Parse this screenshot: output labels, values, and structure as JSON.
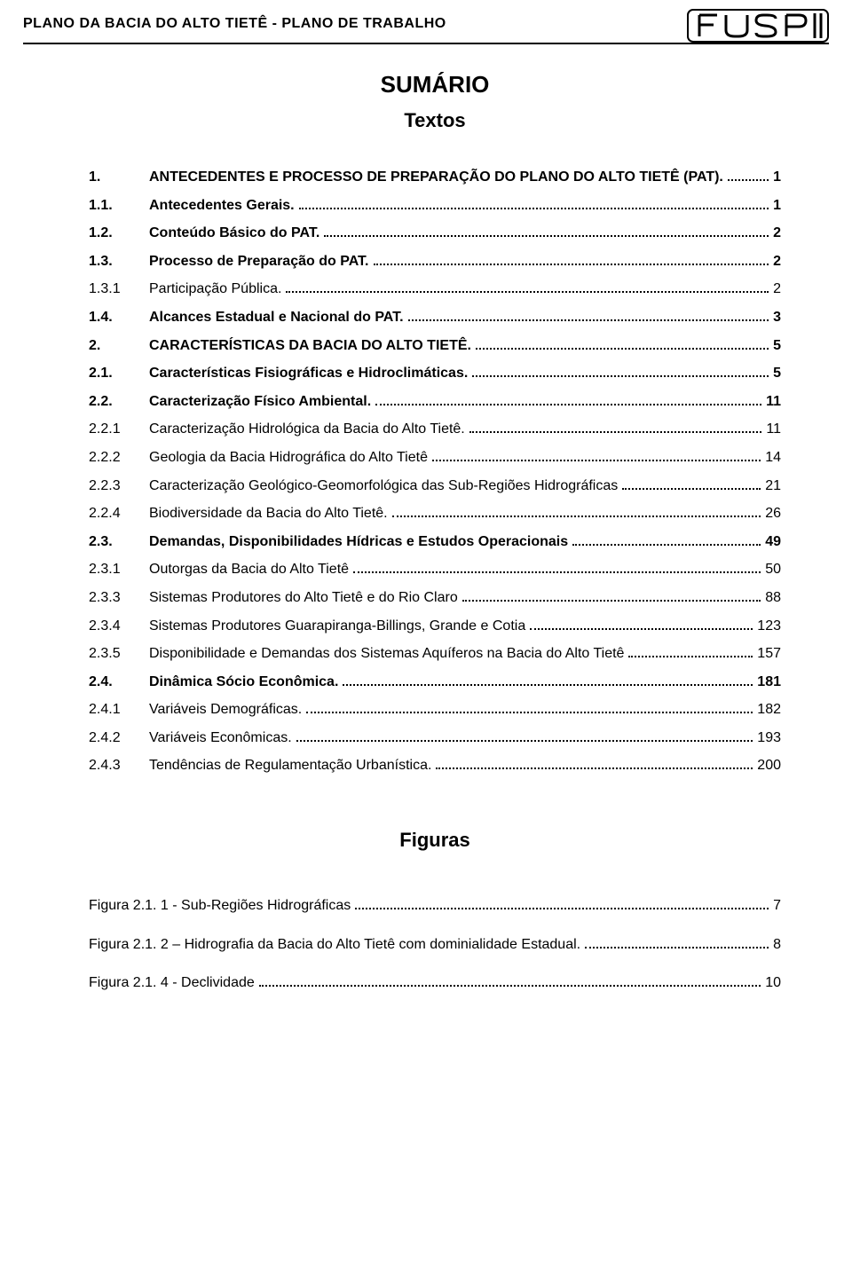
{
  "colors": {
    "page_bg": "#ffffff",
    "text": "#000000",
    "rule": "#000000",
    "logo_outline": "#000000"
  },
  "header": {
    "title": "PLANO DA BACIA DO ALTO TIETÊ - PLANO DE TRABALHO",
    "logo_text": "FUSP"
  },
  "titles": {
    "sumario": "SUMÁRIO",
    "textos": "Textos",
    "figuras": "Figuras"
  },
  "toc": [
    {
      "num": "1.",
      "label": "ANTECEDENTES E PROCESSO DE PREPARAÇÃO DO PLANO DO ALTO TIETÊ (PAT).",
      "page": "1",
      "bold": true
    },
    {
      "num": "1.1.",
      "label": "Antecedentes Gerais.",
      "page": "1",
      "bold": true
    },
    {
      "num": "1.2.",
      "label": "Conteúdo Básico do PAT.",
      "page": "2",
      "bold": true
    },
    {
      "num": "1.3.",
      "label": "Processo de Preparação do PAT.",
      "page": "2",
      "bold": true
    },
    {
      "num": "1.3.1",
      "label": "Participação Pública.",
      "page": "2",
      "bold": false
    },
    {
      "num": "1.4.",
      "label": "Alcances Estadual e Nacional do PAT.",
      "page": "3",
      "bold": true
    },
    {
      "num": "2.",
      "label": "CARACTERÍSTICAS DA BACIA DO ALTO TIETÊ.",
      "page": "5",
      "bold": true
    },
    {
      "num": "2.1.",
      "label": "Características Fisiográficas e Hidroclimáticas.",
      "page": "5",
      "bold": true
    },
    {
      "num": "2.2.",
      "label": "Caracterização Físico Ambiental.",
      "page": "11",
      "bold": true
    },
    {
      "num": "2.2.1",
      "label": "Caracterização Hidrológica da Bacia do Alto Tietê.",
      "page": "11",
      "bold": false
    },
    {
      "num": "2.2.2",
      "label": "Geologia da Bacia Hidrográfica do Alto Tietê",
      "page": "14",
      "bold": false
    },
    {
      "num": "2.2.3",
      "label": "Caracterização Geológico-Geomorfológica das Sub-Regiões Hidrográficas",
      "page": "21",
      "bold": false
    },
    {
      "num": "2.2.4",
      "label": "Biodiversidade da Bacia do Alto Tietê.",
      "page": "26",
      "bold": false
    },
    {
      "num": "2.3.",
      "label": "Demandas, Disponibilidades Hídricas e Estudos Operacionais",
      "page": "49",
      "bold": true
    },
    {
      "num": "2.3.1",
      "label": "Outorgas da Bacia do Alto Tietê",
      "page": "50",
      "bold": false
    },
    {
      "num": "2.3.3",
      "label": "Sistemas Produtores do Alto Tietê e do Rio Claro",
      "page": "88",
      "bold": false
    },
    {
      "num": "2.3.4",
      "label": "Sistemas Produtores Guarapiranga-Billings, Grande e Cotia",
      "page": "123",
      "bold": false
    },
    {
      "num": "2.3.5",
      "label": "Disponibilidade e Demandas dos Sistemas Aquíferos na Bacia do Alto Tietê",
      "page": "157",
      "bold": false
    },
    {
      "num": "2.4.",
      "label": "Dinâmica Sócio Econômica.",
      "page": "181",
      "bold": true
    },
    {
      "num": "2.4.1",
      "label": "Variáveis Demográficas.",
      "page": "182",
      "bold": false
    },
    {
      "num": "2.4.2",
      "label": "Variáveis Econômicas.",
      "page": "193",
      "bold": false
    },
    {
      "num": "2.4.3",
      "label": "Tendências de Regulamentação Urbanística.",
      "page": "200",
      "bold": false
    }
  ],
  "figures": [
    {
      "label": "Figura 2.1. 1 - Sub-Regiões Hidrográficas",
      "page": "7"
    },
    {
      "label": "Figura 2.1. 2 – Hidrografia da Bacia do Alto Tietê com dominialidade Estadual.",
      "page": "8"
    },
    {
      "label": "Figura 2.1. 4 - Declividade",
      "page": "10"
    }
  ]
}
